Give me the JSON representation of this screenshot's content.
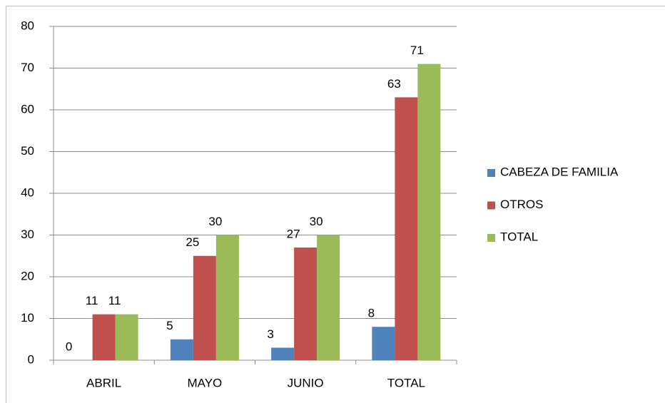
{
  "chart_data": {
    "type": "bar",
    "categories": [
      "ABRIL",
      "MAYO",
      "JUNIO",
      "TOTAL"
    ],
    "series": [
      {
        "name": "CABEZA DE FAMILIA",
        "color": "#4f81bd",
        "values": [
          0,
          5,
          3,
          8
        ]
      },
      {
        "name": "OTROS",
        "color": "#c0504d",
        "values": [
          11,
          25,
          27,
          63
        ]
      },
      {
        "name": "TOTAL",
        "color": "#9bbb59",
        "values": [
          11,
          30,
          30,
          71
        ]
      }
    ],
    "ylim": [
      0,
      80
    ],
    "yticks": [
      0,
      10,
      20,
      30,
      40,
      50,
      60,
      70,
      80
    ],
    "grid": true,
    "legend": "right"
  }
}
